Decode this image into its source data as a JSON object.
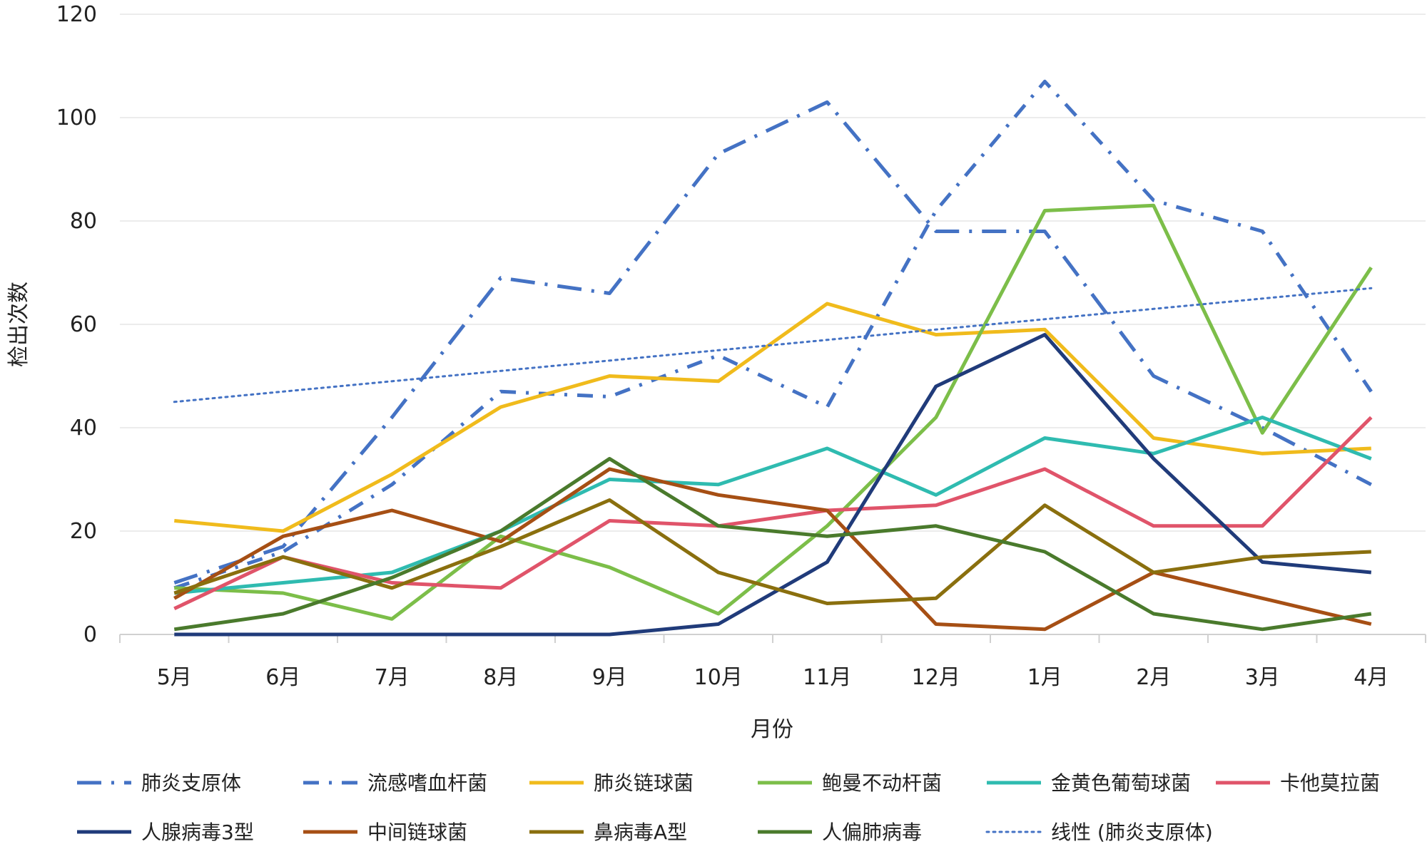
{
  "chart_data": {
    "type": "line",
    "title": "",
    "xlabel": "月份",
    "ylabel": "检出次数",
    "ylim": [
      0,
      120
    ],
    "yticks": [
      0,
      20,
      40,
      60,
      80,
      100,
      120
    ],
    "grid": true,
    "legend_position": "bottom",
    "categories": [
      "5月",
      "6月",
      "7月",
      "8月",
      "9月",
      "10月",
      "11月",
      "12月",
      "1月",
      "2月",
      "3月",
      "4月"
    ],
    "series": [
      {
        "name": "肺炎支原体",
        "color": "#4472C4",
        "dash": "longdash-dot",
        "values": [
          10,
          17,
          42,
          69,
          66,
          93,
          103,
          78,
          78,
          50,
          40,
          29
        ]
      },
      {
        "name": "流感嗜血杆菌",
        "color": "#4472C4",
        "dash": "dash-dot",
        "values": [
          9,
          16,
          29,
          47,
          46,
          54,
          44,
          82,
          107,
          84,
          78,
          47
        ]
      },
      {
        "name": "肺炎链球菌",
        "color": "#F0BB1C",
        "dash": "solid",
        "values": [
          22,
          20,
          31,
          44,
          50,
          49,
          64,
          58,
          59,
          38,
          35,
          36
        ]
      },
      {
        "name": "鲍曼不动杆菌",
        "color": "#7CBE49",
        "dash": "solid",
        "values": [
          9,
          8,
          3,
          19,
          13,
          4,
          21,
          42,
          82,
          83,
          39,
          71
        ]
      },
      {
        "name": "金黄色葡萄球菌",
        "color": "#2FBBB0",
        "dash": "solid",
        "values": [
          8,
          10,
          12,
          20,
          30,
          29,
          36,
          27,
          38,
          35,
          42,
          34
        ]
      },
      {
        "name": "卡他莫拉菌",
        "color": "#E0546A",
        "dash": "solid",
        "values": [
          5,
          15,
          10,
          9,
          22,
          21,
          24,
          25,
          32,
          21,
          21,
          42
        ]
      },
      {
        "name": "人腺病毒3型",
        "color": "#203B7A",
        "dash": "solid",
        "values": [
          0,
          0,
          0,
          0,
          0,
          2,
          14,
          48,
          58,
          34,
          14,
          12
        ]
      },
      {
        "name": "中间链球菌",
        "color": "#A64F14",
        "dash": "solid",
        "values": [
          7,
          19,
          24,
          18,
          32,
          27,
          24,
          2,
          1,
          12,
          7,
          2
        ]
      },
      {
        "name": "鼻病毒A型",
        "color": "#8A6F0E",
        "dash": "solid",
        "values": [
          8,
          15,
          9,
          17,
          26,
          12,
          6,
          7,
          25,
          12,
          15,
          16
        ]
      },
      {
        "name": "人偏肺病毒",
        "color": "#4A7A2C",
        "dash": "solid",
        "values": [
          1,
          4,
          11,
          20,
          34,
          21,
          19,
          21,
          16,
          4,
          1,
          4
        ]
      },
      {
        "name": "线性 (肺炎支原体)",
        "color": "#4472C4",
        "dash": "dotted",
        "trendline": true,
        "values": [
          45,
          47,
          49,
          51,
          53,
          55,
          57,
          59,
          61,
          63,
          65,
          67
        ]
      }
    ]
  }
}
